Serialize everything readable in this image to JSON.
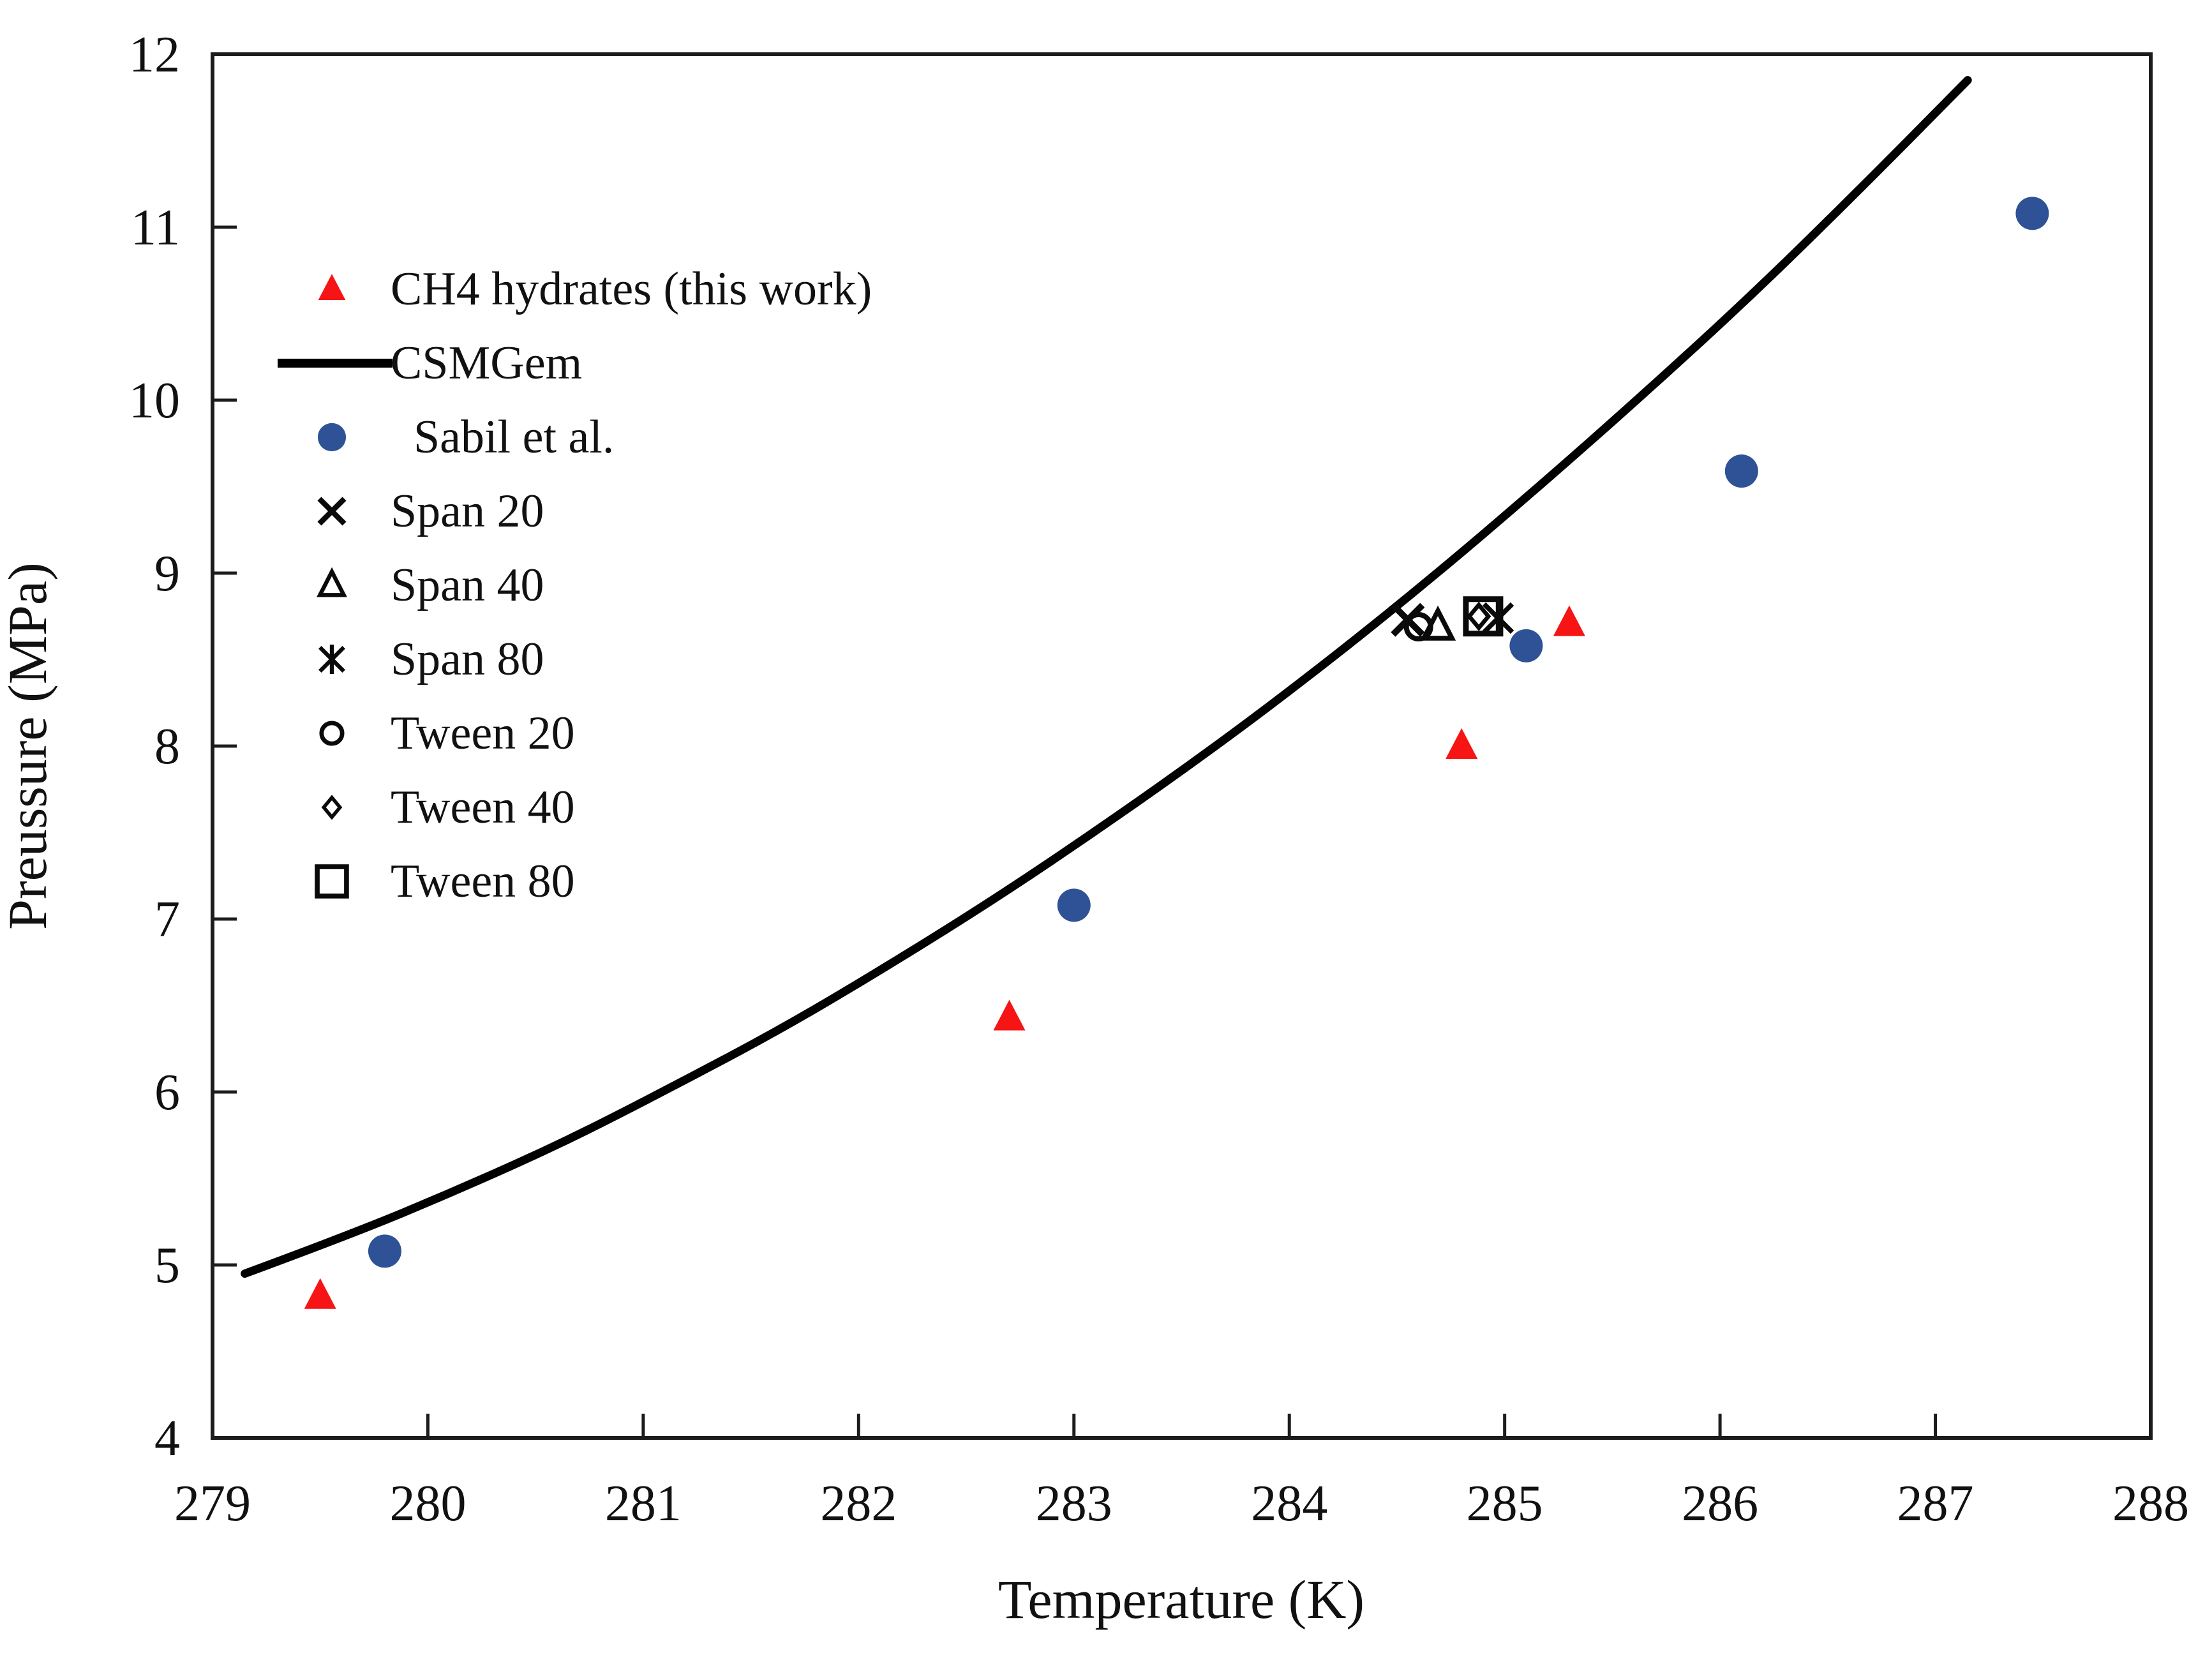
{
  "figure_type": "scientific scatter/line plot",
  "colors": {
    "background": "#ffffff",
    "axis": "#1c1c1c",
    "text": "#111111",
    "red_series": "#F61414",
    "blue_series": "#2E5295",
    "black_series": "#0a0a0a"
  },
  "chart_data": {
    "type": "scatter",
    "title": "",
    "xlabel": "Temperature (K)",
    "ylabel": "Preussure (MPa)",
    "xlim": [
      279,
      288
    ],
    "ylim": [
      4,
      12
    ],
    "x_ticks": [
      279,
      280,
      281,
      282,
      283,
      284,
      285,
      286,
      287,
      288
    ],
    "y_ticks": [
      4,
      5,
      6,
      7,
      8,
      9,
      10,
      11,
      12
    ],
    "grid": false,
    "legend_position": "upper-left-inside",
    "series": [
      {
        "name": "CH4 hydrates (this work)",
        "type": "scatter",
        "marker": "triangle-filled",
        "color": "#F61414",
        "points": [
          [
            279.5,
            4.82
          ],
          [
            282.7,
            6.43
          ],
          [
            284.8,
            8.0
          ],
          [
            285.3,
            8.71
          ]
        ]
      },
      {
        "name": "CSMGem",
        "type": "line",
        "color": "#000000",
        "points": [
          [
            279.15,
            4.95
          ],
          [
            279.65,
            5.18
          ],
          [
            280.15,
            5.44
          ],
          [
            280.65,
            5.72
          ],
          [
            281.15,
            6.04
          ],
          [
            281.65,
            6.37
          ],
          [
            282.15,
            6.74
          ],
          [
            282.65,
            7.13
          ],
          [
            283.15,
            7.55
          ],
          [
            283.65,
            7.99
          ],
          [
            284.15,
            8.46
          ],
          [
            284.65,
            8.96
          ],
          [
            285.15,
            9.49
          ],
          [
            285.65,
            10.04
          ],
          [
            286.15,
            10.61
          ],
          [
            286.65,
            11.22
          ],
          [
            287.15,
            11.85
          ]
        ]
      },
      {
        "name": "Sabil et al.",
        "type": "scatter",
        "marker": "circle-filled",
        "color": "#2E5295",
        "points": [
          [
            279.8,
            5.08
          ],
          [
            283.0,
            7.08
          ],
          [
            285.1,
            8.58
          ],
          [
            286.1,
            9.59
          ],
          [
            287.45,
            11.08
          ]
        ]
      },
      {
        "name": "Span 20",
        "type": "scatter",
        "marker": "x",
        "color": "#0a0a0a",
        "points": [
          [
            284.55,
            8.73
          ]
        ]
      },
      {
        "name": "Span 40",
        "type": "scatter",
        "marker": "triangle-open",
        "color": "#0a0a0a",
        "points": [
          [
            284.69,
            8.69
          ]
        ]
      },
      {
        "name": "Span 80",
        "type": "scatter",
        "marker": "asterisk",
        "color": "#0a0a0a",
        "points": [
          [
            284.97,
            8.74
          ]
        ]
      },
      {
        "name": "Tween 20",
        "type": "scatter",
        "marker": "circle-open",
        "color": "#0a0a0a",
        "points": [
          [
            284.6,
            8.69
          ]
        ]
      },
      {
        "name": "Tween 40",
        "type": "scatter",
        "marker": "diamond-open",
        "color": "#0a0a0a",
        "points": [
          [
            284.88,
            8.75
          ]
        ]
      },
      {
        "name": "Tween 80",
        "type": "scatter",
        "marker": "square-open",
        "color": "#0a0a0a",
        "points": [
          [
            284.9,
            8.75
          ]
        ]
      }
    ]
  },
  "legend": {
    "items": [
      {
        "label": "CH4 hydrates (this work)",
        "marker": "triangle-filled",
        "color": "#F61414"
      },
      {
        "label": "CSMGem",
        "marker": "line",
        "color": "#000000"
      },
      {
        "label": "Sabil et al.",
        "marker": "circle-filled",
        "color": "#2E5295"
      },
      {
        "label": "Span 20",
        "marker": "x",
        "color": "#0a0a0a"
      },
      {
        "label": "Span 40",
        "marker": "triangle-open",
        "color": "#0a0a0a"
      },
      {
        "label": "Span 80",
        "marker": "asterisk",
        "color": "#0a0a0a"
      },
      {
        "label": "Tween 20",
        "marker": "circle-open",
        "color": "#0a0a0a"
      },
      {
        "label": "Tween 40",
        "marker": "diamond-open",
        "color": "#0a0a0a"
      },
      {
        "label": "Tween 80",
        "marker": "square-open",
        "color": "#0a0a0a"
      }
    ]
  }
}
